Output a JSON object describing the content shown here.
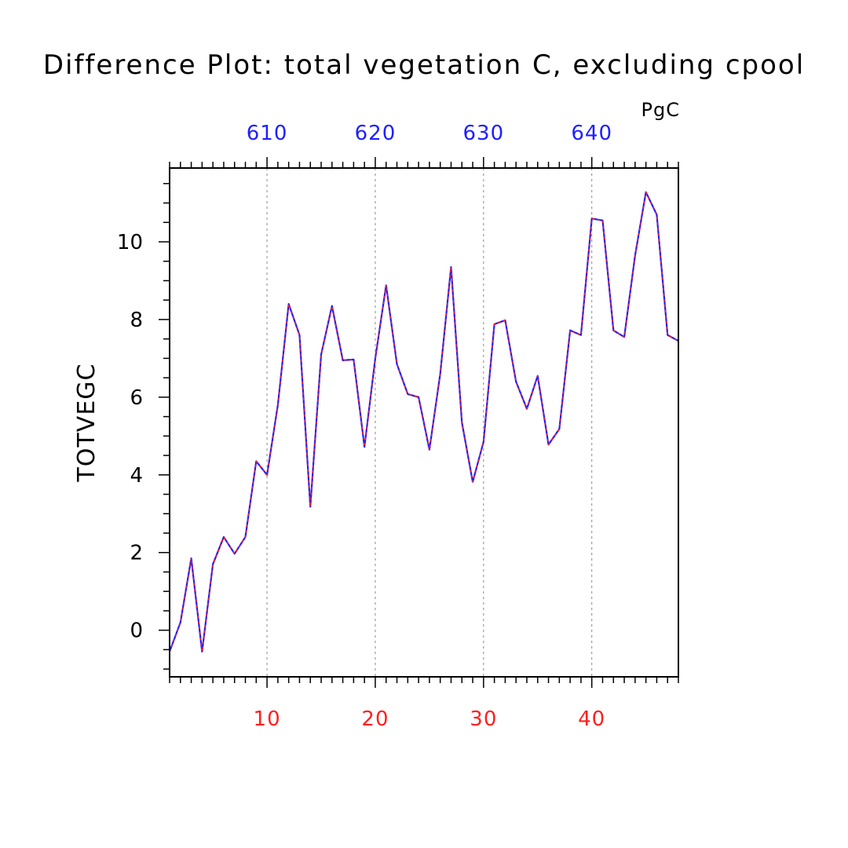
{
  "chart_data": {
    "type": "line",
    "title": "Difference Plot: total vegetation C, excluding cpool",
    "units": "PgC",
    "ylabel": "TOTVEGC",
    "xlabel": "",
    "x": [
      1,
      2,
      3,
      4,
      5,
      6,
      7,
      8,
      9,
      10,
      11,
      12,
      13,
      14,
      15,
      16,
      17,
      18,
      19,
      20,
      21,
      22,
      23,
      24,
      25,
      26,
      27,
      28,
      29,
      30,
      31,
      32,
      33,
      34,
      35,
      36,
      37,
      38,
      39,
      40,
      41,
      42,
      43,
      44,
      45,
      46,
      47,
      48
    ],
    "series": [
      {
        "values": [
          -0.55,
          0.2,
          1.85,
          -0.55,
          1.7,
          2.4,
          1.97,
          2.4,
          4.35,
          4.0,
          5.8,
          8.4,
          7.6,
          3.18,
          7.1,
          8.35,
          6.95,
          6.97,
          4.72,
          7.0,
          8.88,
          6.85,
          6.08,
          6.0,
          4.65,
          6.6,
          9.35,
          5.35,
          3.82,
          4.85,
          7.88,
          7.98,
          6.4,
          5.7,
          6.55,
          4.78,
          5.18,
          7.72,
          7.6,
          10.6,
          10.55,
          7.72,
          7.55,
          9.65,
          11.28,
          10.7,
          7.6,
          7.45
        ],
        "color": "#2020ff",
        "overlay_color": "#ff2020"
      }
    ],
    "xlim": [
      1,
      48
    ],
    "ylim": [
      -1.2,
      11.9
    ],
    "x_ticks_bottom": [
      {
        "value": 10,
        "label": "10"
      },
      {
        "value": 20,
        "label": "20"
      },
      {
        "value": 30,
        "label": "30"
      },
      {
        "value": 40,
        "label": "40"
      }
    ],
    "x_ticks_top": [
      {
        "value": 10,
        "label": "610"
      },
      {
        "value": 20,
        "label": "620"
      },
      {
        "value": 30,
        "label": "630"
      },
      {
        "value": 40,
        "label": "640"
      }
    ],
    "y_ticks": [
      {
        "value": 0,
        "label": "0"
      },
      {
        "value": 2,
        "label": "2"
      },
      {
        "value": 4,
        "label": "4"
      },
      {
        "value": 6,
        "label": "6"
      },
      {
        "value": 8,
        "label": "8"
      },
      {
        "value": 10,
        "label": "10"
      }
    ],
    "grid": "vertical dashed at major x ticks",
    "colors": {
      "bottom_tick_labels": "#ff2020",
      "top_tick_labels": "#2020ff",
      "grid": "#888888"
    }
  }
}
